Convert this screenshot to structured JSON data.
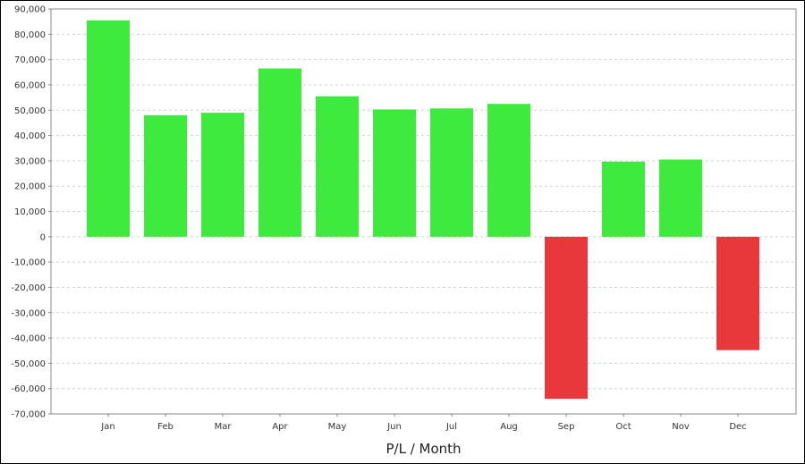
{
  "chart_data": {
    "type": "bar",
    "title": "",
    "xlabel": "P/L / Month",
    "ylabel": "",
    "ylim": [
      -70000,
      90000
    ],
    "yticks": [
      90000,
      80000,
      70000,
      60000,
      50000,
      40000,
      30000,
      20000,
      10000,
      0,
      -10000,
      -20000,
      -30000,
      -40000,
      -50000,
      -60000,
      -70000
    ],
    "ytick_labels": [
      "90,000",
      "80,000",
      "70,000",
      "60,000",
      "50,000",
      "40,000",
      "30,000",
      "20,000",
      "10,000",
      "0",
      "-10,000",
      "-20,000",
      "-30,000",
      "-40,000",
      "-50,000",
      "-60,000",
      "-70,000"
    ],
    "categories": [
      "Jan",
      "Feb",
      "Mar",
      "Apr",
      "May",
      "Jun",
      "Jul",
      "Aug",
      "Sep",
      "Oct",
      "Nov",
      "Dec"
    ],
    "values": [
      85500,
      48000,
      49000,
      66500,
      55500,
      50300,
      50700,
      52500,
      -64000,
      29700,
      30500,
      -44800
    ],
    "grid": true,
    "colors": {
      "positive": "#3dea3d",
      "negative": "#e8383c",
      "grid": "#d4d4d4",
      "axis": "#888888"
    }
  }
}
